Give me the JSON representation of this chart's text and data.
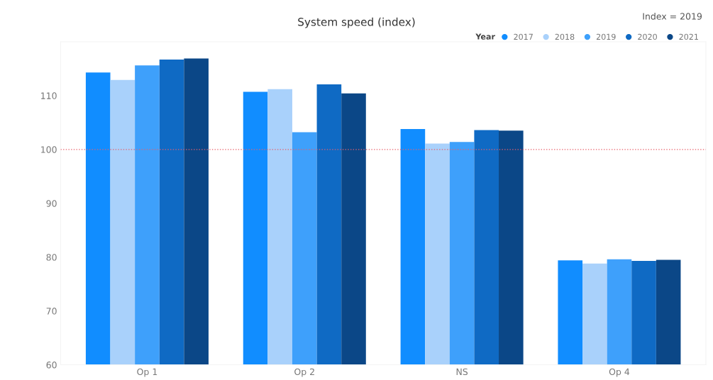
{
  "chart_data": {
    "type": "bar",
    "title": "System speed (index)",
    "categories": [
      "Op 1",
      "Op 2",
      "NS",
      "Op 4"
    ],
    "series": [
      {
        "name": "2017",
        "color": "#118dff",
        "values": [
          114.3,
          110.7,
          103.8,
          79.4
        ]
      },
      {
        "name": "2018",
        "color": "#a9d1fb",
        "values": [
          112.9,
          111.2,
          101.1,
          78.8
        ]
      },
      {
        "name": "2019",
        "color": "#3ea0fb",
        "values": [
          115.6,
          103.2,
          101.4,
          79.6
        ]
      },
      {
        "name": "2020",
        "color": "#0f6ac4",
        "values": [
          116.7,
          112.1,
          103.6,
          79.3
        ]
      },
      {
        "name": "2021",
        "color": "#0b4787",
        "values": [
          116.9,
          110.4,
          103.5,
          79.5
        ]
      }
    ],
    "legend_title": "Year",
    "legend": "top right",
    "annotations": [
      "Index = 2019"
    ],
    "ylim": [
      60,
      120
    ],
    "yticks": [
      60,
      70,
      80,
      90,
      100,
      110
    ],
    "ref_lines": [
      {
        "axis": "y",
        "value": 100,
        "color": "#e8606a",
        "line_style": "dotted"
      }
    ],
    "grid": false
  }
}
